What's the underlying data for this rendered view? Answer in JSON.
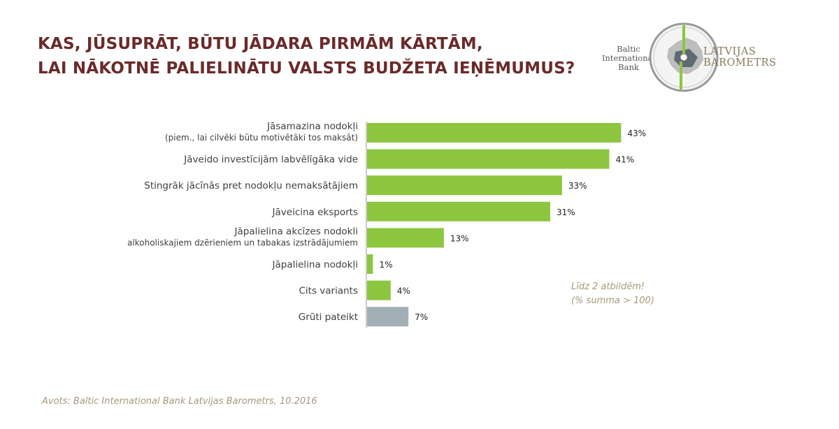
{
  "title": {
    "line1": "KAS, JŪSUPRĀT, BŪTU JĀDARA PIRMĀM KĀRTĀM,",
    "line2": "LAI NĀKOTNĒ PALIELINĀTU VALSTS BUDŽETA IEŅĒMUMUS?"
  },
  "logo": {
    "bank_line1": "Baltic",
    "bank_line2": "International",
    "bank_line3": "Bank",
    "name_line1": "LATVIJAS",
    "name_line2": "BAROMETRS"
  },
  "chart_data": {
    "type": "bar",
    "orientation": "horizontal",
    "categories": [
      "Jāsamazina nodokļi (piem., lai cilvēki būtu motivētāki tos maksāt)",
      "Jāveido investīcijām labvēlīgāka vide",
      "Stingrāk jācīnās pret nodokļu nemaksātājiem",
      "Jāveicina eksports",
      "Jāpalielina akcīzes nodokli alkoholiskajiem dzērieniem un tabakas izstrādājumiem",
      "Jāpalielina nodokļi",
      "Cits variants",
      "Grūti pateikt"
    ],
    "category_lines": [
      [
        "Jāsamazina nodokļi",
        "(piem., lai cilvēki būtu motivētāki tos maksāt)"
      ],
      [
        "Jāveido investīcijām labvēlīgāka vide"
      ],
      [
        "Stingrāk jācīnās pret nodokļu nemaksātājiem"
      ],
      [
        "Jāveicina eksports"
      ],
      [
        "Jāpalielina akcīzes nodokli",
        "alkoholiskajiem dzērieniem un tabakas izstrādājumiem"
      ],
      [
        "Jāpalielina nodokļi"
      ],
      [
        "Cits variants"
      ],
      [
        "Grūti pateikt"
      ]
    ],
    "values": [
      43,
      41,
      33,
      31,
      13,
      1,
      4,
      7
    ],
    "value_labels": [
      "43%",
      "41%",
      "33%",
      "31%",
      "13%",
      "1%",
      "4%",
      "7%"
    ],
    "unit": "%",
    "xlim": [
      0,
      50
    ],
    "grid": false,
    "legend": "none",
    "colors": {
      "main": "#8dc63f",
      "difficult_to_say": "#a3afb7",
      "category_text": "#404040",
      "value_text": "#222222"
    }
  },
  "note": {
    "line1": "Līdz 2 atbildēm!",
    "line2": "(% summa > 100)"
  },
  "source": "Avots: Baltic International Bank Latvijas Barometrs, 10.2016"
}
